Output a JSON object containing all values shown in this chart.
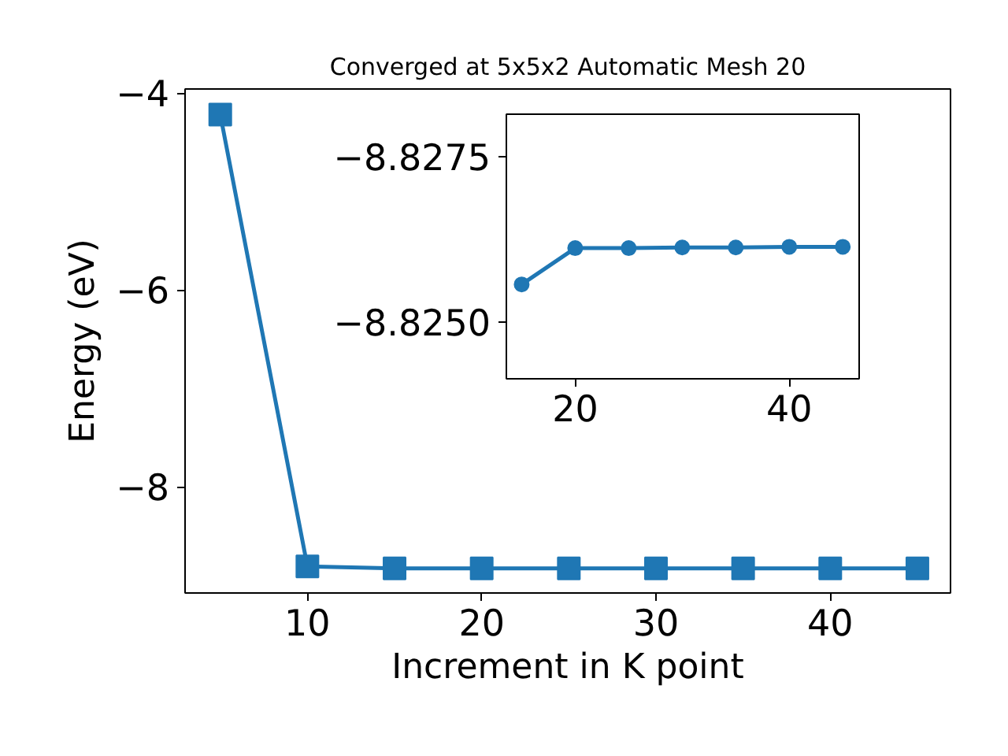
{
  "chart_data": [
    {
      "type": "line",
      "title": "Converged at 5x5x2 Automatic Mesh 20",
      "xlabel": "Increment in K point",
      "ylabel": "Energy (eV)",
      "x": [
        5,
        10,
        15,
        20,
        25,
        30,
        35,
        40,
        45
      ],
      "series": [
        {
          "color": "#1f77b4",
          "values": [
            -4.22,
            -8.81,
            -8.83,
            -8.83,
            -8.83,
            -8.83,
            -8.83,
            -8.83,
            -8.83
          ]
        }
      ],
      "xlim": [
        2.98,
        46.9
      ],
      "ylim": [
        -9.08,
        -3.96
      ],
      "xticks": [
        10,
        20,
        30,
        40
      ],
      "yticks": [
        {
          "value": -4,
          "label": "−4"
        },
        {
          "value": -6,
          "label": "−6"
        },
        {
          "value": -8,
          "label": "−8"
        }
      ],
      "marker": "square",
      "line_style": "solid",
      "grid": false
    },
    {
      "type": "line",
      "x": [
        15,
        20,
        25,
        30,
        35,
        40,
        45
      ],
      "series": [
        {
          "color": "#1f77b4",
          "values": [
            -8.82557,
            -8.82612,
            -8.82612,
            -8.82613,
            -8.82613,
            -8.82614,
            -8.82614
          ]
        }
      ],
      "xlim": [
        13.57,
        46.53
      ],
      "ylim": [
        -8.82414,
        -8.82815
      ],
      "xticks": [
        20,
        40
      ],
      "yticks": [
        {
          "value": -8.8275,
          "label": "−8.8275"
        },
        {
          "value": -8.825,
          "label": "−8.8250"
        }
      ],
      "marker": "circle",
      "line_style": "solid",
      "grid": false
    }
  ]
}
